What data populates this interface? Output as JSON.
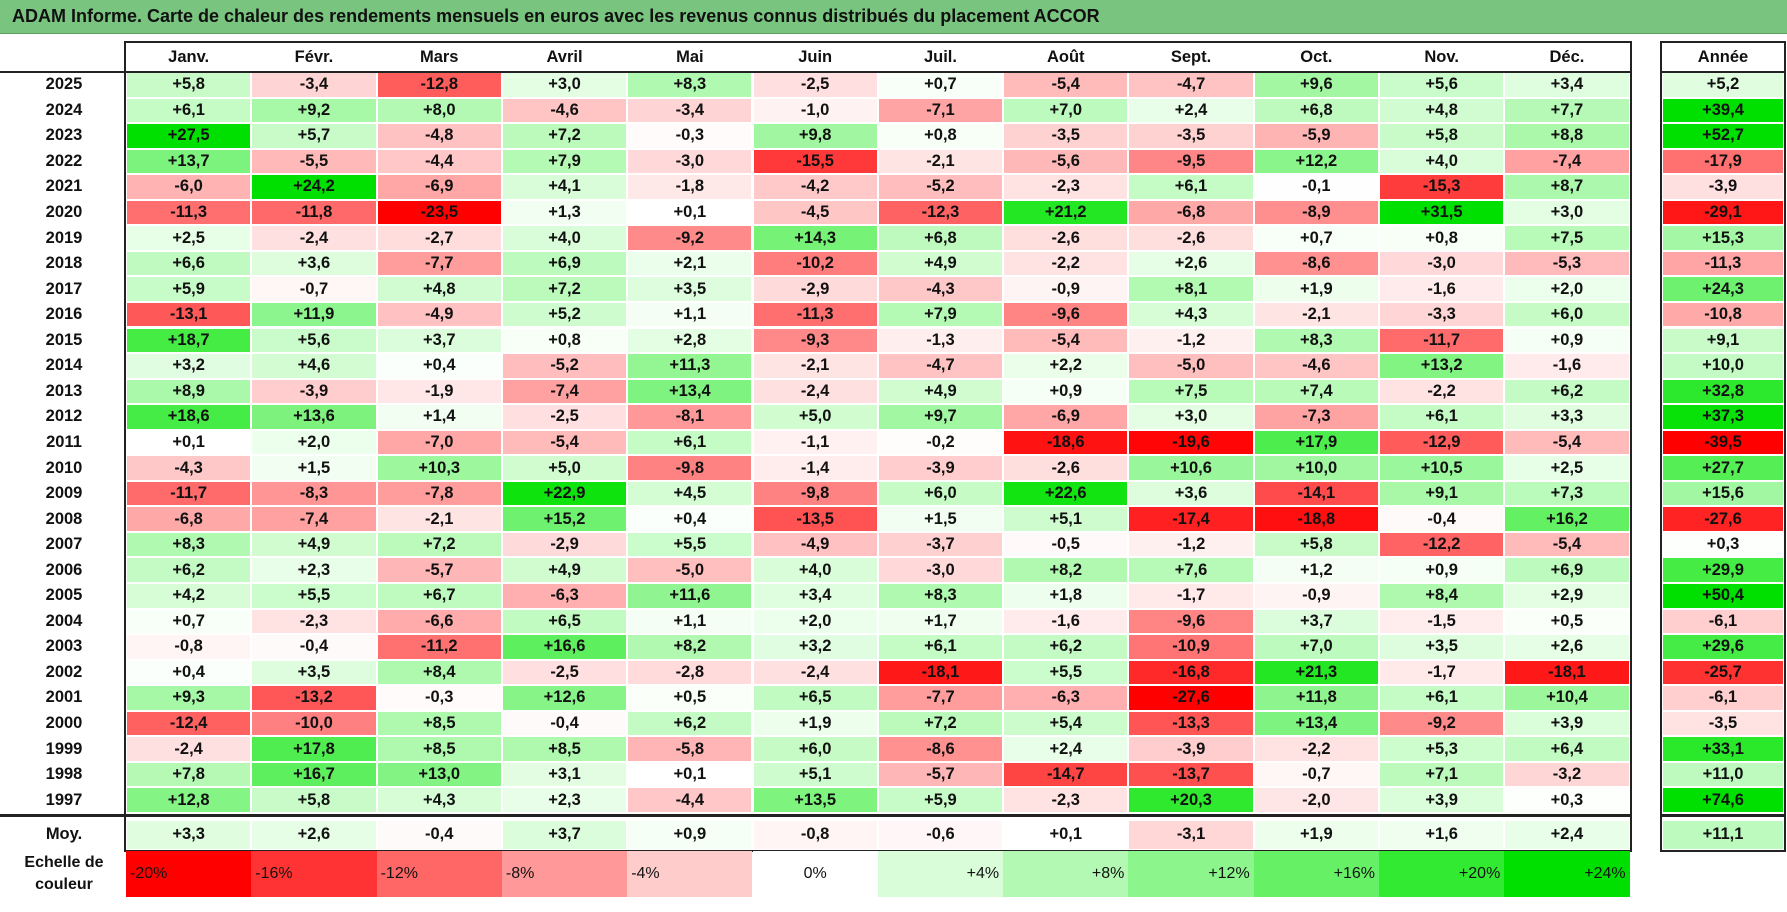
{
  "title": "ADAM Informe. Carte de chaleur des rendements mensuels en euros avec les revenus connus distribués du placement ACCOR",
  "chart_data": {
    "type": "heatmap",
    "months": [
      "Janv.",
      "Févr.",
      "Mars",
      "Avril",
      "Mai",
      "Juin",
      "Juil.",
      "Août",
      "Sept.",
      "Oct.",
      "Nov.",
      "Déc."
    ],
    "annual_header": "Année",
    "rows": [
      {
        "year": "2025",
        "values": [
          "+5,8",
          "-3,4",
          "-12,8",
          "+3,0",
          "+8,3",
          "-2,5",
          "+0,7",
          "-5,4",
          "-4,7",
          "+9,6",
          "+5,6",
          "+3,4"
        ],
        "annual": "+5,2"
      },
      {
        "year": "2024",
        "values": [
          "+6,1",
          "+9,2",
          "+8,0",
          "-4,6",
          "-3,4",
          "-1,0",
          "-7,1",
          "+7,0",
          "+2,4",
          "+6,8",
          "+4,8",
          "+7,7"
        ],
        "annual": "+39,4"
      },
      {
        "year": "2023",
        "values": [
          "+27,5",
          "+5,7",
          "-4,8",
          "+7,2",
          "-0,3",
          "+9,8",
          "+0,8",
          "-3,5",
          "-3,5",
          "-5,9",
          "+5,8",
          "+8,8"
        ],
        "annual": "+52,7"
      },
      {
        "year": "2022",
        "values": [
          "+13,7",
          "-5,5",
          "-4,4",
          "+7,9",
          "-3,0",
          "-15,5",
          "-2,1",
          "-5,6",
          "-9,5",
          "+12,2",
          "+4,0",
          "-7,4"
        ],
        "annual": "-17,9"
      },
      {
        "year": "2021",
        "values": [
          "-6,0",
          "+24,2",
          "-6,9",
          "+4,1",
          "-1,8",
          "-4,2",
          "-5,2",
          "-2,3",
          "+6,1",
          "-0,1",
          "-15,3",
          "+8,7"
        ],
        "annual": "-3,9"
      },
      {
        "year": "2020",
        "values": [
          "-11,3",
          "-11,8",
          "-23,5",
          "+1,3",
          "+0,1",
          "-4,5",
          "-12,3",
          "+21,2",
          "-6,8",
          "-8,9",
          "+31,5",
          "+3,0"
        ],
        "annual": "-29,1"
      },
      {
        "year": "2019",
        "values": [
          "+2,5",
          "-2,4",
          "-2,7",
          "+4,0",
          "-9,2",
          "+14,3",
          "+6,8",
          "-2,6",
          "-2,6",
          "+0,7",
          "+0,8",
          "+7,5"
        ],
        "annual": "+15,3"
      },
      {
        "year": "2018",
        "values": [
          "+6,6",
          "+3,6",
          "-7,7",
          "+6,9",
          "+2,1",
          "-10,2",
          "+4,9",
          "-2,2",
          "+2,6",
          "-8,6",
          "-3,0",
          "-5,3"
        ],
        "annual": "-11,3"
      },
      {
        "year": "2017",
        "values": [
          "+5,9",
          "-0,7",
          "+4,8",
          "+7,2",
          "+3,5",
          "-2,9",
          "-4,3",
          "-0,9",
          "+8,1",
          "+1,9",
          "-1,6",
          "+2,0"
        ],
        "annual": "+24,3"
      },
      {
        "year": "2016",
        "values": [
          "-13,1",
          "+11,9",
          "-4,9",
          "+5,2",
          "+1,1",
          "-11,3",
          "+7,9",
          "-9,6",
          "+4,3",
          "-2,1",
          "-3,3",
          "+6,0"
        ],
        "annual": "-10,8"
      },
      {
        "year": "2015",
        "values": [
          "+18,7",
          "+5,6",
          "+3,7",
          "+0,8",
          "+2,8",
          "-9,3",
          "-1,3",
          "-5,4",
          "-1,2",
          "+8,3",
          "-11,7",
          "+0,9"
        ],
        "annual": "+9,1"
      },
      {
        "year": "2014",
        "values": [
          "+3,2",
          "+4,6",
          "+0,4",
          "-5,2",
          "+11,3",
          "-2,1",
          "-4,7",
          "+2,2",
          "-5,0",
          "-4,6",
          "+13,2",
          "-1,6"
        ],
        "annual": "+10,0"
      },
      {
        "year": "2013",
        "values": [
          "+8,9",
          "-3,9",
          "-1,9",
          "-7,4",
          "+13,4",
          "-2,4",
          "+4,9",
          "+0,9",
          "+7,5",
          "+7,4",
          "-2,2",
          "+6,2"
        ],
        "annual": "+32,8"
      },
      {
        "year": "2012",
        "values": [
          "+18,6",
          "+13,6",
          "+1,4",
          "-2,5",
          "-8,1",
          "+5,0",
          "+9,7",
          "-6,9",
          "+3,0",
          "-7,3",
          "+6,1",
          "+3,3"
        ],
        "annual": "+37,3"
      },
      {
        "year": "2011",
        "values": [
          "+0,1",
          "+2,0",
          "-7,0",
          "-5,4",
          "+6,1",
          "-1,1",
          "-0,2",
          "-18,6",
          "-19,6",
          "+17,9",
          "-12,9",
          "-5,4"
        ],
        "annual": "-39,5"
      },
      {
        "year": "2010",
        "values": [
          "-4,3",
          "+1,5",
          "+10,3",
          "+5,0",
          "-9,8",
          "-1,4",
          "-3,9",
          "-2,6",
          "+10,6",
          "+10,0",
          "+10,5",
          "+2,5"
        ],
        "annual": "+27,7"
      },
      {
        "year": "2009",
        "values": [
          "-11,7",
          "-8,3",
          "-7,8",
          "+22,9",
          "+4,5",
          "-9,8",
          "+6,0",
          "+22,6",
          "+3,6",
          "-14,1",
          "+9,1",
          "+7,3"
        ],
        "annual": "+15,6"
      },
      {
        "year": "2008",
        "values": [
          "-6,8",
          "-7,4",
          "-2,1",
          "+15,2",
          "+0,4",
          "-13,5",
          "+1,5",
          "+5,1",
          "-17,4",
          "-18,8",
          "-0,4",
          "+16,2"
        ],
        "annual": "-27,6"
      },
      {
        "year": "2007",
        "values": [
          "+8,3",
          "+4,9",
          "+7,2",
          "-2,9",
          "+5,5",
          "-4,9",
          "-3,7",
          "-0,5",
          "-1,2",
          "+5,8",
          "-12,2",
          "-5,4"
        ],
        "annual": "+0,3"
      },
      {
        "year": "2006",
        "values": [
          "+6,2",
          "+2,3",
          "-5,7",
          "+4,9",
          "-5,0",
          "+4,0",
          "-3,0",
          "+8,2",
          "+7,6",
          "+1,2",
          "+0,9",
          "+6,9"
        ],
        "annual": "+29,9"
      },
      {
        "year": "2005",
        "values": [
          "+4,2",
          "+5,5",
          "+6,7",
          "-6,3",
          "+11,6",
          "+3,4",
          "+8,3",
          "+1,8",
          "-1,7",
          "-0,9",
          "+8,4",
          "+2,9"
        ],
        "annual": "+50,4"
      },
      {
        "year": "2004",
        "values": [
          "+0,7",
          "-2,3",
          "-6,6",
          "+6,5",
          "+1,1",
          "+2,0",
          "+1,7",
          "-1,6",
          "-9,6",
          "+3,7",
          "-1,5",
          "+0,5"
        ],
        "annual": "-6,1"
      },
      {
        "year": "2003",
        "values": [
          "-0,8",
          "-0,4",
          "-11,2",
          "+16,6",
          "+8,2",
          "+3,2",
          "+6,1",
          "+6,2",
          "-10,9",
          "+7,0",
          "+3,5",
          "+2,6"
        ],
        "annual": "+29,6"
      },
      {
        "year": "2002",
        "values": [
          "+0,4",
          "+3,5",
          "+8,4",
          "-2,5",
          "-2,8",
          "-2,4",
          "-18,1",
          "+5,5",
          "-16,8",
          "+21,3",
          "-1,7",
          "-18,1"
        ],
        "annual": "-25,7"
      },
      {
        "year": "2001",
        "values": [
          "+9,3",
          "-13,2",
          "-0,3",
          "+12,6",
          "+0,5",
          "+6,5",
          "-7,7",
          "-6,3",
          "-27,6",
          "+11,8",
          "+6,1",
          "+10,4"
        ],
        "annual": "-6,1"
      },
      {
        "year": "2000",
        "values": [
          "-12,4",
          "-10,0",
          "+8,5",
          "-0,4",
          "+6,2",
          "+1,9",
          "+7,2",
          "+5,4",
          "-13,3",
          "+13,4",
          "-9,2",
          "+3,9"
        ],
        "annual": "-3,5"
      },
      {
        "year": "1999",
        "values": [
          "-2,4",
          "+17,8",
          "+8,5",
          "+8,5",
          "-5,8",
          "+6,0",
          "-8,6",
          "+2,4",
          "-3,9",
          "-2,2",
          "+5,3",
          "+6,4"
        ],
        "annual": "+33,1"
      },
      {
        "year": "1998",
        "values": [
          "+7,8",
          "+16,7",
          "+13,0",
          "+3,1",
          "+0,1",
          "+5,1",
          "-5,7",
          "-14,7",
          "-13,7",
          "-0,7",
          "+7,1",
          "-3,2"
        ],
        "annual": "+11,0"
      },
      {
        "year": "1997",
        "values": [
          "+12,8",
          "+5,8",
          "+4,3",
          "+2,3",
          "-4,4",
          "+13,5",
          "+5,9",
          "-2,3",
          "+20,3",
          "-2,0",
          "+3,9",
          "+0,3"
        ],
        "annual": "+74,6"
      }
    ],
    "average_row": {
      "label": "Moy.",
      "values": [
        "+3,3",
        "+2,6",
        "-0,4",
        "+3,7",
        "+0,9",
        "-0,8",
        "-0,6",
        "+0,1",
        "-3,1",
        "+1,9",
        "+1,6",
        "+2,4"
      ],
      "annual": "+11,1"
    },
    "scale_label": "Echelle de couleur",
    "scale": [
      {
        "label": "-20%",
        "value": -20,
        "color": "#ff0000"
      },
      {
        "label": "-16%",
        "value": -16,
        "color": "#ff3333"
      },
      {
        "label": "-12%",
        "value": -12,
        "color": "#ff6666"
      },
      {
        "label": "-8%",
        "value": -8,
        "color": "#ff9999"
      },
      {
        "label": "-4%",
        "value": -4,
        "color": "#ffcccc"
      },
      {
        "label": "0%",
        "value": 0,
        "color": "#ffffff"
      },
      {
        "label": "+4%",
        "value": 4,
        "color": "#d9fdd9"
      },
      {
        "label": "+8%",
        "value": 8,
        "color": "#b3f9b3"
      },
      {
        "label": "+12%",
        "value": 12,
        "color": "#8cf58c"
      },
      {
        "label": "+16%",
        "value": 16,
        "color": "#66f066"
      },
      {
        "label": "+20%",
        "value": 20,
        "color": "#33ea33"
      },
      {
        "label": "+24%",
        "value": 24,
        "color": "#00e000"
      }
    ]
  }
}
